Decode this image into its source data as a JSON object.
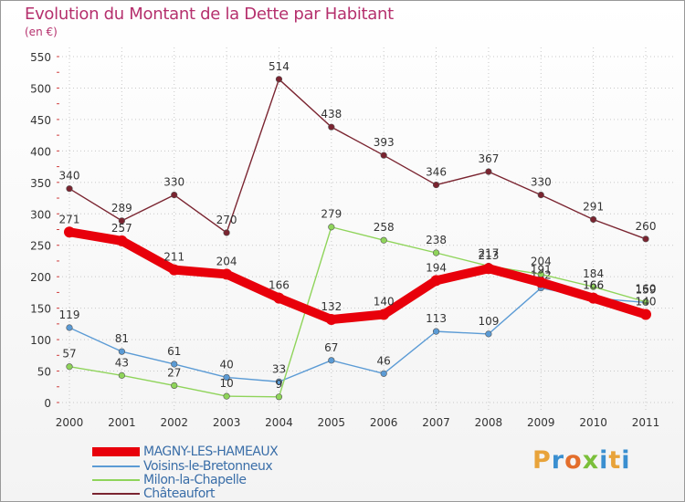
{
  "title": "Evolution du Montant de la Dette par Habitant",
  "subtitle": "(en €)",
  "logo": {
    "text": "ProXiti",
    "letters": [
      "P",
      "r",
      "o",
      "x",
      "i",
      "t",
      "i"
    ],
    "colors": [
      "#e8a33a",
      "#3a8fd0",
      "#e36e2c",
      "#7bbf3a",
      "#3a8fd0",
      "#e8a33a",
      "#3a8fd0"
    ]
  },
  "chart_data": {
    "type": "line",
    "title": "Evolution du Montant de la Dette par Habitant",
    "subtitle": "(en €)",
    "xlabel": "",
    "ylabel": "",
    "categories": [
      "2000",
      "2001",
      "2002",
      "2003",
      "2004",
      "2005",
      "2006",
      "2007",
      "2008",
      "2009",
      "2010",
      "2011"
    ],
    "ylim": [
      0,
      550
    ],
    "yticks": [
      0,
      50,
      100,
      150,
      200,
      250,
      300,
      350,
      400,
      450,
      500,
      550
    ],
    "grid": true,
    "legend_position": "bottom-left",
    "series": [
      {
        "name": "MAGNY-LES-HAMEAUX",
        "color": "#e8000b",
        "emphasis": true,
        "values": [
          271,
          257,
          211,
          204,
          166,
          132,
          140,
          194,
          213,
          191,
          166,
          140
        ]
      },
      {
        "name": "Voisins-le-Bretonneux",
        "color": "#5b9bd5",
        "emphasis": false,
        "values": [
          119,
          81,
          61,
          40,
          33,
          67,
          46,
          113,
          109,
          182,
          166,
          159
        ]
      },
      {
        "name": "Milon-la-Chapelle",
        "color": "#8fd45a",
        "emphasis": false,
        "values": [
          57,
          43,
          27,
          10,
          9,
          279,
          258,
          238,
          217,
          204,
          184,
          160
        ]
      },
      {
        "name": "Châteaufort",
        "color": "#7a2430",
        "emphasis": false,
        "values": [
          340,
          289,
          330,
          270,
          514,
          438,
          393,
          346,
          367,
          330,
          291,
          260
        ]
      }
    ]
  }
}
